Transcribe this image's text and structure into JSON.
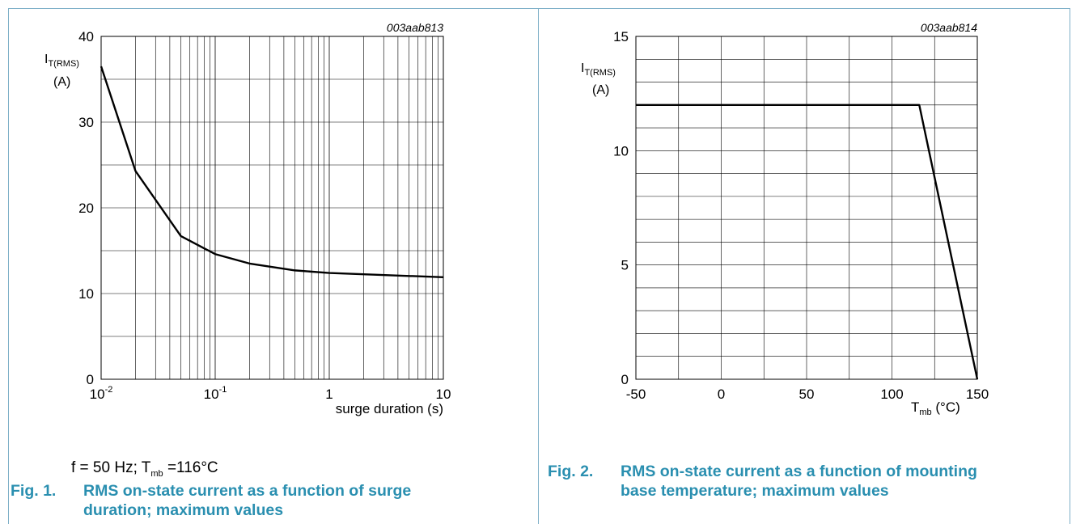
{
  "chart_data": [
    {
      "type": "line",
      "figure_id": "003aab813",
      "ylabel_main": "I",
      "ylabel_sub": "T(RMS)",
      "ylabel_unit": "(A)",
      "xlabel": "surge duration (s)",
      "xscale": "log",
      "xlim": [
        0.01,
        10
      ],
      "ylim": [
        0,
        40
      ],
      "y_ticks": [
        "0",
        "10",
        "20",
        "30",
        "40"
      ],
      "x_ticks": [
        {
          "base": "10",
          "exp": "-2"
        },
        {
          "base": "10",
          "exp": "-1"
        },
        {
          "base": "1",
          "exp": ""
        },
        {
          "base": "10",
          "exp": ""
        }
      ],
      "series": [
        {
          "x": [
            0.01,
            0.02,
            0.05,
            0.1,
            0.2,
            0.5,
            1,
            10
          ],
          "y": [
            36.5,
            24.3,
            16.7,
            14.6,
            13.5,
            12.7,
            12.4,
            11.9
          ]
        }
      ],
      "condition": {
        "text_a": "f = 50 Hz; T",
        "sub": "mb",
        "text_b": " =116°C"
      },
      "caption_num": "Fig. 1.",
      "caption_line1": "RMS on-state current as a function of surge",
      "caption_line2": "duration; maximum values"
    },
    {
      "type": "line",
      "figure_id": "003aab814",
      "ylabel_main": "I",
      "ylabel_sub": "T(RMS)",
      "ylabel_unit": "(A)",
      "xlabel_main": "T",
      "xlabel_sub": "mb",
      "xlabel_unit": " (°C)",
      "xlim": [
        -50,
        150
      ],
      "ylim": [
        0,
        15
      ],
      "y_ticks": [
        "0",
        "5",
        "10",
        "15"
      ],
      "x_ticks": [
        "-50",
        "0",
        "50",
        "100",
        "150"
      ],
      "series": [
        {
          "x": [
            -50,
            116,
            150
          ],
          "y": [
            12,
            12,
            0
          ]
        }
      ],
      "caption_num": "Fig. 2.",
      "caption_line1": "RMS on-state current as a function of mounting",
      "caption_line2": "base temperature; maximum values"
    }
  ]
}
